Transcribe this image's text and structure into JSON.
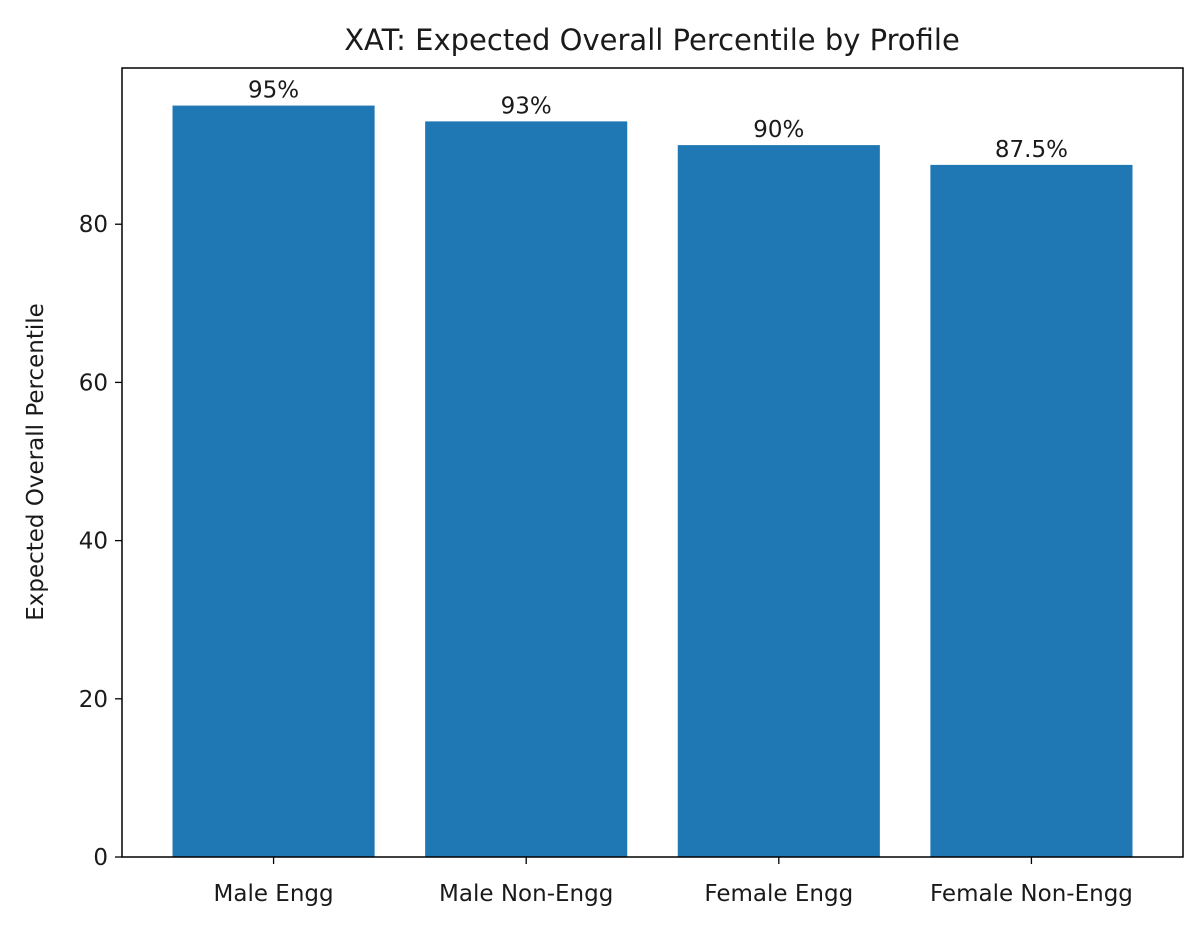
{
  "chart_data": {
    "type": "bar",
    "title": "XAT: Expected Overall Percentile by Profile",
    "xlabel": "",
    "ylabel": "Expected Overall Percentile",
    "categories": [
      "Male Engg",
      "Male Non-Engg",
      "Female Engg",
      "Female Non-Engg"
    ],
    "values": [
      95,
      93,
      90,
      87.5
    ],
    "data_labels": [
      "95%",
      "93%",
      "90%",
      "87.5%"
    ],
    "ylim": [
      0,
      99.75
    ],
    "yticks": [
      0,
      20,
      40,
      60,
      80
    ],
    "grid": false,
    "bar_color": "#1f77b4"
  }
}
